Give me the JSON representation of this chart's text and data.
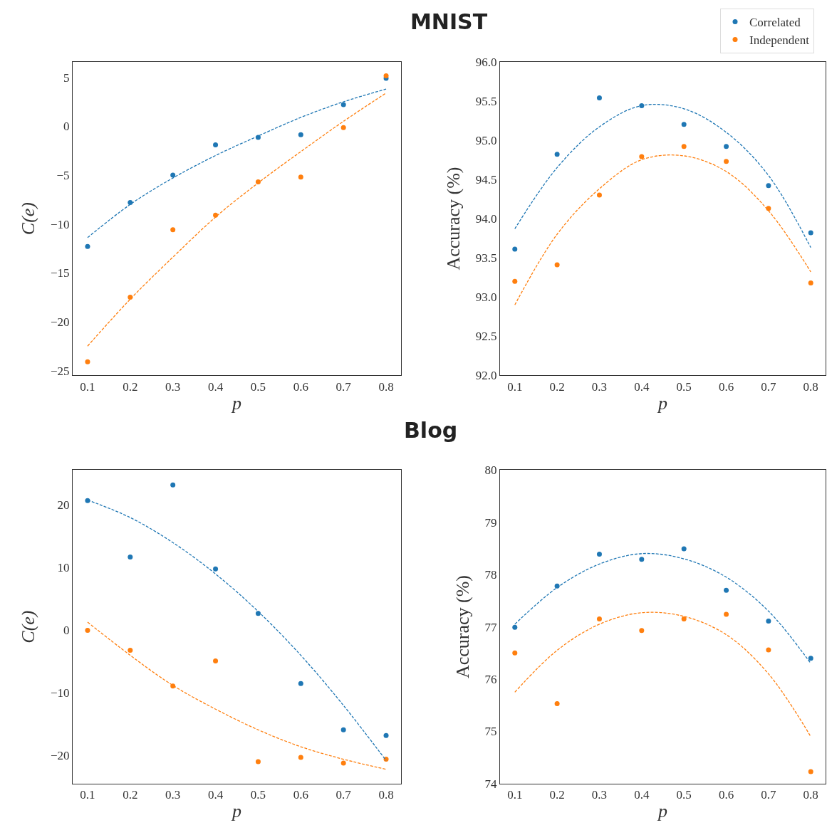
{
  "chart_data": [
    {
      "type": "scatter",
      "title": "MNIST",
      "xlabel": "p",
      "ylabel": "C(e)",
      "legend": "top right",
      "x": [
        0.1,
        0.2,
        0.3,
        0.4,
        0.5,
        0.6,
        0.7,
        0.8
      ],
      "xlim": [
        0.065,
        0.835
      ],
      "xticks": [
        0.1,
        0.2,
        0.3,
        0.4,
        0.5,
        0.6,
        0.7,
        0.8
      ],
      "ylim": [
        -25.5,
        6.6
      ],
      "yticks": [
        {
          "value": -25,
          "label": "−25"
        },
        {
          "value": -20,
          "label": "−20"
        },
        {
          "value": -15,
          "label": "−15"
        },
        {
          "value": -10,
          "label": "−10"
        },
        {
          "value": -5,
          "label": "−5"
        },
        0,
        5
      ],
      "series": [
        {
          "name": "Correlated",
          "color": "#1f77b4",
          "marker": "circle",
          "values": [
            -12.3,
            -7.8,
            -5.0,
            -1.9,
            -1.15,
            -0.86,
            2.2,
            4.9
          ]
        },
        {
          "name": "Independent",
          "color": "#ff7f0e",
          "marker": "circle",
          "values": [
            -24.1,
            -17.5,
            -10.6,
            -9.1,
            -5.7,
            -5.2,
            -0.14,
            5.15
          ]
        },
        {
          "type": "line",
          "line_style": "dashed",
          "color": "#1f77b4",
          "x": [
            0.1,
            0.2,
            0.3,
            0.4,
            0.5,
            0.6,
            0.7,
            0.8
          ],
          "values": [
            -11.4,
            -8.0,
            -5.3,
            -3.0,
            -1.0,
            0.9,
            2.5,
            3.8
          ]
        },
        {
          "type": "line",
          "line_style": "dashed",
          "color": "#ff7f0e",
          "x": [
            0.1,
            0.2,
            0.3,
            0.4,
            0.5,
            0.6,
            0.7,
            0.8
          ],
          "values": [
            -22.5,
            -17.7,
            -13.4,
            -9.3,
            -5.8,
            -2.6,
            0.5,
            3.4
          ]
        }
      ]
    },
    {
      "type": "scatter",
      "xlabel": "p",
      "ylabel": "Accuracy (%)",
      "x": [
        0.1,
        0.2,
        0.3,
        0.4,
        0.5,
        0.6,
        0.7,
        0.8
      ],
      "xlim": [
        0.065,
        0.835
      ],
      "xticks": [
        0.1,
        0.2,
        0.3,
        0.4,
        0.5,
        0.6,
        0.7,
        0.8
      ],
      "ylim": [
        92,
        96
      ],
      "yticks": [
        {
          "value": 92,
          "label": "92.0"
        },
        92.5,
        {
          "value": 93,
          "label": "93.0"
        },
        93.5,
        {
          "value": 94,
          "label": "94.0"
        },
        94.5,
        {
          "value": 95,
          "label": "95.0"
        },
        95.5,
        {
          "value": 96,
          "label": "96.0"
        }
      ],
      "series": [
        {
          "color": "#1f77b4",
          "marker": "circle",
          "values": [
            93.61,
            94.82,
            95.54,
            95.44,
            95.2,
            94.92,
            94.42,
            93.82
          ]
        },
        {
          "color": "#ff7f0e",
          "marker": "circle",
          "values": [
            93.2,
            93.41,
            94.3,
            94.79,
            94.92,
            94.73,
            94.13,
            93.18
          ]
        },
        {
          "type": "line",
          "line_style": "dashed",
          "color": "#1f77b4",
          "x": [
            0.1,
            0.2,
            0.3,
            0.4,
            0.5,
            0.6,
            0.7,
            0.8
          ],
          "values": [
            93.87,
            94.65,
            95.17,
            95.44,
            95.4,
            95.1,
            94.55,
            93.63
          ]
        },
        {
          "type": "line",
          "line_style": "dashed",
          "color": "#ff7f0e",
          "x": [
            0.1,
            0.2,
            0.3,
            0.4,
            0.5,
            0.6,
            0.7,
            0.8
          ],
          "values": [
            92.9,
            93.8,
            94.38,
            94.75,
            94.8,
            94.6,
            94.1,
            93.32
          ]
        }
      ]
    },
    {
      "type": "scatter",
      "title": "Blog",
      "xlabel": "p",
      "ylabel": "C(e)",
      "x": [
        0.1,
        0.2,
        0.3,
        0.4,
        0.5,
        0.6,
        0.7,
        0.8
      ],
      "xlim": [
        0.065,
        0.835
      ],
      "xticks": [
        0.1,
        0.2,
        0.3,
        0.4,
        0.5,
        0.6,
        0.7,
        0.8
      ],
      "ylim": [
        -24.5,
        25.6
      ],
      "yticks": [
        {
          "value": -20,
          "label": "−20"
        },
        {
          "value": -10,
          "label": "−10"
        },
        0,
        10,
        20
      ],
      "series": [
        {
          "color": "#1f77b4",
          "marker": "circle",
          "values": [
            20.7,
            11.7,
            23.2,
            9.8,
            2.7,
            -8.5,
            -15.9,
            -16.8
          ]
        },
        {
          "color": "#ff7f0e",
          "marker": "circle",
          "values": [
            0,
            -3.2,
            -8.9,
            -4.9,
            -21.0,
            -20.3,
            -21.2,
            -20.6
          ]
        },
        {
          "type": "line",
          "line_style": "dashed",
          "color": "#1f77b4",
          "x": [
            0.1,
            0.2,
            0.3,
            0.4,
            0.5,
            0.6,
            0.7,
            0.8
          ],
          "values": [
            20.8,
            18.0,
            14.0,
            9.0,
            3.0,
            -4.0,
            -12.0,
            -20.8
          ]
        },
        {
          "type": "line",
          "line_style": "dashed",
          "color": "#ff7f0e",
          "x": [
            0.1,
            0.2,
            0.3,
            0.4,
            0.5,
            0.6,
            0.7,
            0.8
          ],
          "values": [
            1.3,
            -4.0,
            -8.8,
            -12.6,
            -15.9,
            -18.6,
            -20.6,
            -22.2
          ]
        }
      ]
    },
    {
      "type": "scatter",
      "xlabel": "p",
      "ylabel": "Accuracy (%)",
      "x": [
        0.1,
        0.2,
        0.3,
        0.4,
        0.5,
        0.6,
        0.7,
        0.8
      ],
      "xlim": [
        0.065,
        0.835
      ],
      "xticks": [
        0.1,
        0.2,
        0.3,
        0.4,
        0.5,
        0.6,
        0.7,
        0.8
      ],
      "ylim": [
        74,
        80
      ],
      "yticks": [
        74,
        75,
        76,
        77,
        78,
        79,
        80
      ],
      "series": [
        {
          "color": "#1f77b4",
          "marker": "circle",
          "values": [
            76.99,
            77.78,
            78.39,
            78.29,
            78.49,
            77.7,
            77.11,
            76.4
          ]
        },
        {
          "color": "#ff7f0e",
          "marker": "circle",
          "values": [
            76.5,
            75.53,
            77.15,
            76.93,
            77.15,
            77.24,
            76.56,
            74.23
          ]
        },
        {
          "type": "line",
          "line_style": "dashed",
          "color": "#1f77b4",
          "x": [
            0.1,
            0.2,
            0.3,
            0.4,
            0.5,
            0.6,
            0.7,
            0.8
          ],
          "values": [
            77.05,
            77.75,
            78.2,
            78.4,
            78.3,
            77.95,
            77.3,
            76.3
          ]
        },
        {
          "type": "line",
          "line_style": "dashed",
          "color": "#ff7f0e",
          "x": [
            0.1,
            0.2,
            0.3,
            0.4,
            0.5,
            0.6,
            0.7,
            0.8
          ],
          "values": [
            75.75,
            76.55,
            77.05,
            77.27,
            77.2,
            76.85,
            76.1,
            74.9
          ]
        }
      ]
    }
  ]
}
